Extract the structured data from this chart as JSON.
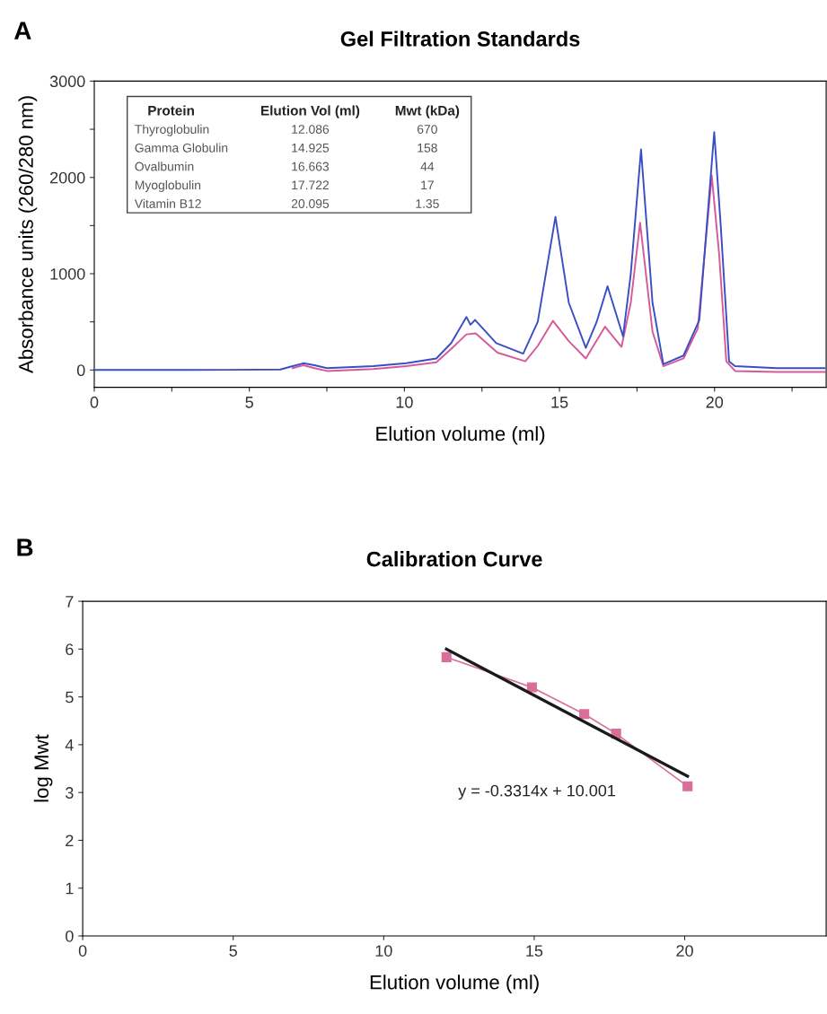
{
  "chart_data": [
    {
      "type": "line",
      "title": "Gel Filtration Standards",
      "xlabel": "Elution volume (ml)",
      "ylabel": "Absorbance units (260/280 nm)",
      "annotations": [
        "A",
        "Protein",
        "Elution Vol (ml)",
        "Mwt (kDa)",
        "Thyroglobulin",
        "12.086",
        "670",
        "Gamma Globulin",
        "14.925",
        "158",
        "Ovalbumin",
        "16.663",
        "44",
        "Myoglobulin",
        "17.722",
        "17",
        "Vitamin B12",
        "20.095",
        "1.35"
      ],
      "xlim": [
        0,
        23.6
      ],
      "ylim": [
        -180,
        3000
      ],
      "xticks": [
        0,
        {
          "value": 2.5,
          "label": null
        },
        5,
        {
          "value": 7.5,
          "label": null
        },
        10,
        {
          "value": 12.5,
          "label": null
        },
        15,
        {
          "value": 17.5,
          "label": null
        },
        20,
        {
          "value": 22.5,
          "label": null
        }
      ],
      "yticks": [
        0,
        {
          "value": 500,
          "label": null
        },
        1000,
        {
          "value": 1500,
          "label": null
        },
        2000,
        {
          "value": 2500,
          "label": null
        },
        3000
      ],
      "marker": "none",
      "line_style": "solid",
      "series": [
        {
          "color": "#3b4fc4",
          "x": [
            0,
            3,
            6,
            6.4,
            6.74,
            7.1,
            7.5,
            9,
            10.06,
            11.03,
            11.51,
            12.0,
            12.13,
            12.28,
            12.96,
            13.83,
            14.3,
            14.87,
            15.3,
            15.85,
            16.2,
            16.55,
            17.05,
            17.3,
            17.63,
            18.0,
            18.35,
            19.0,
            19.51,
            19.99,
            20.2,
            20.47,
            20.66,
            22,
            23.55
          ],
          "values": [
            0,
            0,
            5,
            40,
            70,
            50,
            20,
            40,
            70,
            120,
            280,
            550,
            470,
            520,
            280,
            170,
            500,
            1590,
            700,
            230,
            500,
            870,
            350,
            1000,
            2290,
            700,
            60,
            150,
            520,
            2470,
            1500,
            90,
            40,
            20,
            20
          ]
        },
        {
          "color": "#d65a9a",
          "x": [
            6.4,
            6.74,
            7.1,
            7.5,
            9,
            10.06,
            11.03,
            11.51,
            12.0,
            12.3,
            13.0,
            13.9,
            14.3,
            14.79,
            15.3,
            15.85,
            16.47,
            17.0,
            17.3,
            17.6,
            18.0,
            18.35,
            19.0,
            19.46,
            19.91,
            20.15,
            20.38,
            20.66,
            22,
            23.55
          ],
          "values": [
            20,
            50,
            20,
            -10,
            10,
            40,
            80,
            220,
            370,
            380,
            180,
            90,
            250,
            510,
            300,
            120,
            450,
            240,
            700,
            1530,
            400,
            40,
            120,
            430,
            2020,
            1200,
            90,
            -10,
            -20,
            -20
          ]
        }
      ]
    },
    {
      "type": "scatter",
      "title": "Calibration Curve",
      "xlabel": "Elution volume (ml)",
      "ylabel": "log Mwt",
      "annotations": [
        "B",
        "y = -0.3314x + 10.001"
      ],
      "xlim": [
        0,
        24.7
      ],
      "ylim": [
        0,
        7
      ],
      "xticks": [
        0,
        5,
        10,
        15,
        20
      ],
      "yticks": [
        0,
        1,
        2,
        3,
        4,
        5,
        6,
        7
      ],
      "series": [
        {
          "type": "line",
          "color": "#d86f9b",
          "marker": "square",
          "line_style": "solid",
          "x": [
            12.086,
            14.925,
            16.663,
            17.722,
            20.095
          ],
          "values": [
            5.83,
            5.2,
            4.64,
            4.23,
            3.13
          ]
        },
        {
          "type": "line",
          "color": "#1a1a1a",
          "marker": "none",
          "line_style": "solid",
          "x": [
            12.086,
            20.095
          ],
          "values": [
            6.0,
            3.34
          ]
        }
      ]
    }
  ]
}
